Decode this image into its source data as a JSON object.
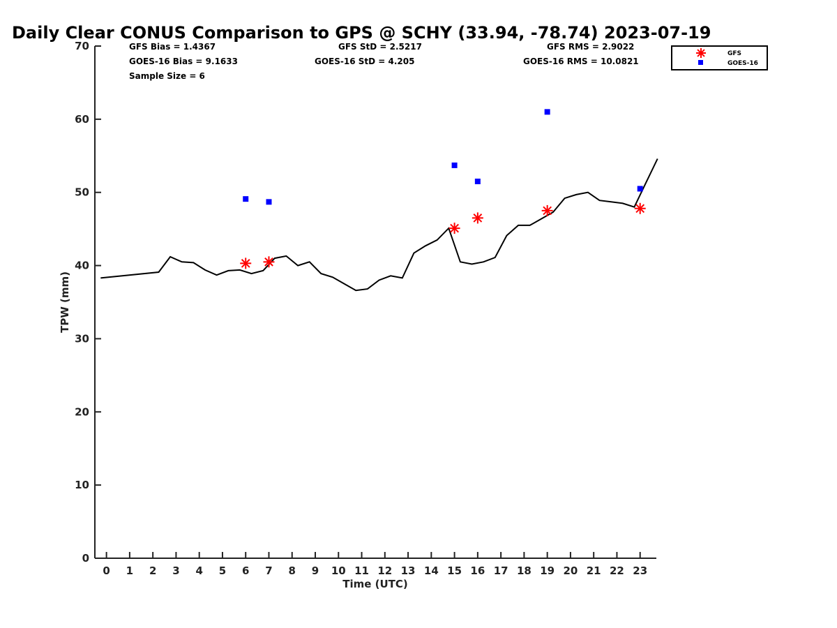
{
  "chart_data": {
    "type": "line",
    "title": "Daily Clear CONUS Comparison to GPS @ SCHY (33.94, -78.74) 2023-07-19",
    "xlabel": "Time (UTC)",
    "ylabel": "TPW (mm)",
    "xlim": [
      -0.5,
      23.7
    ],
    "ylim": [
      0,
      70
    ],
    "x_ticks": [
      0,
      1,
      2,
      3,
      4,
      5,
      6,
      7,
      8,
      9,
      10,
      11,
      12,
      13,
      14,
      15,
      16,
      17,
      18,
      19,
      20,
      21,
      22,
      23
    ],
    "y_ticks": [
      0,
      10,
      20,
      30,
      40,
      50,
      60,
      70
    ],
    "grid": false,
    "legend_position": "top-right",
    "stats": {
      "gfs_bias": "GFS Bias = 1.4367",
      "goes_bias": "GOES-16 Bias = 9.1633",
      "sample_size": "Sample Size = 6",
      "gfs_std": "GFS StD = 2.5217",
      "goes_std": "GOES-16 StD = 4.205",
      "gfs_rms": "GFS RMS = 2.9022",
      "goes_rms": "GOES-16 RMS = 10.0821"
    },
    "series": [
      {
        "type": "line",
        "color": "#000000",
        "x": [
          -0.25,
          2.25,
          2.75,
          3.25,
          3.75,
          4.25,
          4.75,
          5.25,
          5.75,
          6.25,
          6.75,
          7.25,
          7.75,
          8.25,
          8.75,
          9.25,
          9.75,
          10.25,
          10.75,
          11.25,
          11.75,
          12.25,
          12.75,
          13.25,
          13.75,
          14.25,
          14.75,
          15.25,
          15.75,
          16.25,
          16.75,
          17.25,
          17.75,
          18.25,
          18.75,
          19.25,
          19.75,
          20.25,
          20.75,
          21.25,
          21.75,
          22.25,
          22.75,
          23.25,
          23.75
        ],
        "y": [
          38.3,
          39.1,
          41.2,
          40.5,
          40.4,
          39.4,
          38.7,
          39.3,
          39.4,
          38.9,
          39.3,
          41.0,
          41.3,
          40.0,
          40.5,
          38.9,
          38.4,
          37.5,
          36.6,
          36.8,
          38.0,
          38.6,
          38.3,
          41.7,
          42.7,
          43.5,
          45.1,
          40.5,
          40.2,
          40.5,
          41.1,
          44.1,
          45.5,
          45.5,
          46.4,
          47.3,
          49.2,
          49.7,
          50.0,
          48.9,
          48.7,
          48.5,
          48.0,
          51.3,
          54.6
        ]
      },
      {
        "name": "GFS",
        "type": "scatter",
        "marker": "asterisk",
        "color": "#ff0000",
        "x": [
          6,
          7,
          15,
          16,
          19,
          23
        ],
        "y": [
          40.3,
          40.5,
          45.1,
          46.5,
          47.5,
          47.8
        ]
      },
      {
        "name": "GOES-16",
        "type": "scatter",
        "marker": "square",
        "color": "#0000ff",
        "x": [
          6,
          7,
          15,
          16,
          19,
          23
        ],
        "y": [
          49.1,
          48.7,
          53.7,
          51.5,
          61.0,
          50.5
        ]
      }
    ]
  }
}
